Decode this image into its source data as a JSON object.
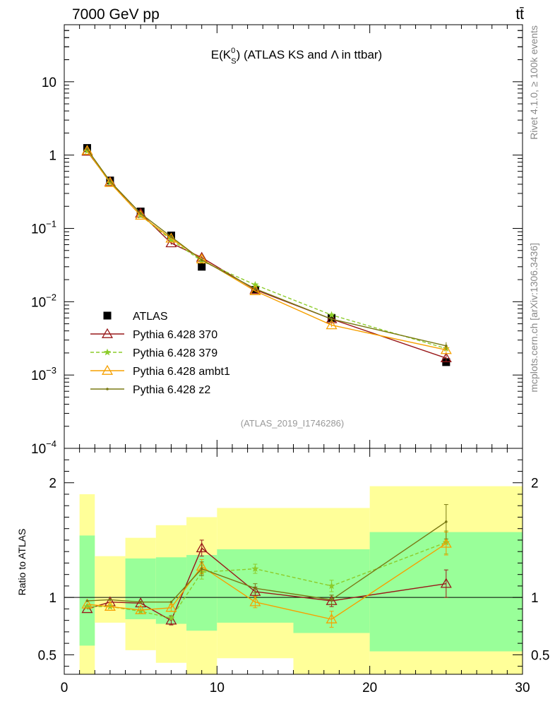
{
  "header": {
    "left": "7000 GeV pp",
    "right": "tt̄"
  },
  "side_labels": {
    "rivet": "Rivet 4.1.0, ≥ 100k events",
    "mcplots": "mcplots.cern.ch [arXiv:1306.3436]"
  },
  "analysis_ref": "(ATLAS_2019_I1746286)",
  "chart_data": [
    {
      "type": "line",
      "panel": "main",
      "title": "E(K⁰_S) (ATLAS KS and Λ in ttbar)",
      "title_parts": {
        "pre": "E(K",
        "sup": "0",
        "sub": "S",
        "post": ") (ATLAS KS and Λ in ttbar)"
      },
      "yscale": "log",
      "xlim": [
        0,
        30
      ],
      "ylim": [
        0.0001,
        60
      ],
      "ytick_labels": [
        {
          "value": 10,
          "base": "10",
          "exp": ""
        },
        {
          "value": 1,
          "base": "1",
          "exp": ""
        },
        {
          "value": 0.1,
          "base": "10",
          "exp": "−1"
        },
        {
          "value": 0.01,
          "base": "10",
          "exp": "−2"
        },
        {
          "value": 0.001,
          "base": "10",
          "exp": "−3"
        },
        {
          "value": 0.0001,
          "base": "10",
          "exp": "−4"
        }
      ],
      "x": [
        1.5,
        3,
        5,
        7,
        9,
        12.5,
        17.5,
        25
      ],
      "bin_edges": [
        1,
        2,
        4,
        6,
        8,
        10,
        15,
        20,
        30
      ],
      "series": [
        {
          "name": "ATLAS",
          "marker": "square",
          "color": "#000000",
          "dashed": false,
          "line": false,
          "values": [
            1.25,
            0.45,
            0.17,
            0.08,
            0.03,
            0.0145,
            0.006,
            0.0015
          ],
          "errors": [
            0,
            0,
            0,
            0,
            0,
            0,
            0,
            0
          ]
        },
        {
          "name": "Pythia 6.428 370",
          "marker": "triangle-open",
          "color": "#99191a",
          "dashed": false,
          "line": true,
          "values": [
            1.12,
            0.43,
            0.16,
            0.063,
            0.04,
            0.0146,
            0.0058,
            0.0017
          ],
          "errors": [
            0,
            0,
            0,
            0.003,
            0.002,
            0.0005,
            0.0003,
            0.0002
          ]
        },
        {
          "name": "Pythia 6.428 379",
          "marker": "star",
          "color": "#8ccc2a",
          "dashed": true,
          "line": true,
          "values": [
            1.14,
            0.42,
            0.15,
            0.07,
            0.036,
            0.017,
            0.0066,
            0.0023
          ],
          "errors": [
            0,
            0,
            0,
            0,
            0,
            0,
            0,
            0
          ]
        },
        {
          "name": "Pythia 6.428 ambt1",
          "marker": "triangle-open",
          "color": "#f6a000",
          "dashed": false,
          "line": true,
          "values": [
            1.15,
            0.42,
            0.15,
            0.073,
            0.038,
            0.014,
            0.0048,
            0.0022
          ],
          "errors": [
            0,
            0,
            0,
            0,
            0,
            0,
            0.0003,
            0.0002
          ]
        },
        {
          "name": "Pythia 6.428 z2",
          "marker": "dot",
          "color": "#7a7a14",
          "dashed": false,
          "line": true,
          "values": [
            1.2,
            0.44,
            0.16,
            0.077,
            0.037,
            0.015,
            0.0058,
            0.0025
          ],
          "errors": [
            0,
            0,
            0,
            0,
            0,
            0,
            0.0003,
            0.0003
          ]
        }
      ]
    },
    {
      "type": "line",
      "panel": "ratio",
      "ylabel": "Ratio to ATLAS",
      "xlabel": "",
      "xlim": [
        0,
        30
      ],
      "ylim": [
        0.33,
        2.3
      ],
      "x_ticks": [
        0,
        10,
        20,
        30
      ],
      "x_tick_labels": [
        "0",
        "10",
        "20",
        "30"
      ],
      "y_ticks": [
        0.5,
        1,
        2
      ],
      "y_tick_labels": [
        "0.5",
        "1",
        "2"
      ],
      "bands": {
        "bin_edges": [
          1,
          2,
          4,
          6,
          8,
          10,
          15,
          20,
          30
        ],
        "yellow_low": [
          0.33,
          0.78,
          0.54,
          0.43,
          0.33,
          0.47,
          0.33,
          0.33
        ],
        "yellow_high": [
          1.9,
          1.36,
          1.52,
          1.63,
          1.7,
          1.78,
          1.78,
          1.97
        ],
        "green_low": [
          0.58,
          1.0,
          0.81,
          0.77,
          0.71,
          0.78,
          0.69,
          0.53
        ],
        "green_high": [
          1.54,
          1.0,
          1.34,
          1.35,
          1.37,
          1.42,
          1.42,
          1.57
        ]
      },
      "series": [
        {
          "name": "Pythia 6.428 370",
          "marker": "triangle-open",
          "color": "#99191a",
          "dashed": false,
          "values": [
            0.9,
            0.96,
            0.95,
            0.8,
            1.43,
            1.05,
            0.97,
            1.12
          ],
          "errors": [
            0,
            0,
            0,
            0.04,
            0.07,
            0.04,
            0.05,
            0.12
          ]
        },
        {
          "name": "Pythia 6.428 379",
          "marker": "star",
          "color": "#8ccc2a",
          "dashed": true,
          "values": [
            0.92,
            0.92,
            0.88,
            0.82,
            1.22,
            1.25,
            1.1,
            1.48
          ],
          "errors": [
            0,
            0,
            0,
            0,
            0.06,
            0.04,
            0.05,
            0.1
          ]
        },
        {
          "name": "Pythia 6.428 ambt1",
          "marker": "triangle-open",
          "color": "#f6a000",
          "dashed": false,
          "values": [
            0.94,
            0.92,
            0.89,
            0.91,
            1.27,
            0.96,
            0.81,
            1.47
          ],
          "errors": [
            0,
            0,
            0,
            0.03,
            0.06,
            0.05,
            0.07,
            0.1
          ]
        },
        {
          "name": "Pythia 6.428 z2",
          "marker": "dot",
          "color": "#7a7a14",
          "dashed": false,
          "values": [
            0.97,
            0.98,
            0.96,
            0.96,
            1.25,
            1.08,
            0.98,
            1.66
          ],
          "errors": [
            0,
            0,
            0,
            0,
            0.06,
            0.04,
            0.04,
            0.15
          ]
        }
      ]
    }
  ]
}
